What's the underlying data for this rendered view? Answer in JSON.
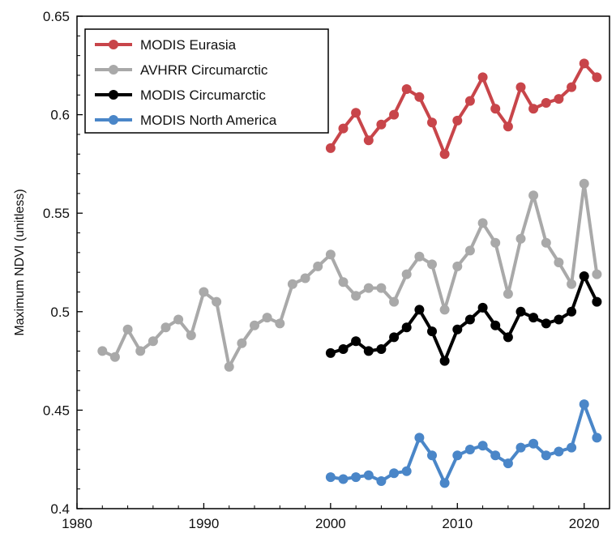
{
  "chart_data": {
    "type": "line",
    "title": "",
    "xlabel": "",
    "ylabel": "Maximum NDVI (unitless)",
    "xlim": [
      1980,
      2022
    ],
    "ylim": [
      0.4,
      0.65
    ],
    "x_ticks": [
      1980,
      1990,
      2000,
      2010,
      2020
    ],
    "y_ticks": [
      0.4,
      0.45,
      0.5,
      0.55,
      0.6,
      0.65
    ],
    "y_tick_labels": [
      "0.4",
      "0.45",
      "0.5",
      "0.55",
      "0.6",
      "0.65"
    ],
    "grid": false,
    "legend_position": "top-left",
    "series": [
      {
        "name": "MODIS Eurasia",
        "color": "#c8454a",
        "x": [
          2000,
          2001,
          2002,
          2003,
          2004,
          2005,
          2006,
          2007,
          2008,
          2009,
          2010,
          2011,
          2012,
          2013,
          2014,
          2015,
          2016,
          2017,
          2018,
          2019,
          2020,
          2021
        ],
        "values": [
          0.583,
          0.593,
          0.601,
          0.587,
          0.595,
          0.6,
          0.613,
          0.609,
          0.596,
          0.58,
          0.597,
          0.607,
          0.619,
          0.603,
          0.594,
          0.614,
          0.603,
          0.606,
          0.608,
          0.614,
          0.626,
          0.619
        ]
      },
      {
        "name": "AVHRR Circumarctic",
        "color": "#a9a9a9",
        "x": [
          1982,
          1983,
          1984,
          1985,
          1986,
          1987,
          1988,
          1989,
          1990,
          1991,
          1992,
          1993,
          1994,
          1995,
          1996,
          1997,
          1998,
          1999,
          2000,
          2001,
          2002,
          2003,
          2004,
          2005,
          2006,
          2007,
          2008,
          2009,
          2010,
          2011,
          2012,
          2013,
          2014,
          2015,
          2016,
          2017,
          2018,
          2019,
          2020,
          2021
        ],
        "values": [
          0.48,
          0.477,
          0.491,
          0.48,
          0.485,
          0.492,
          0.496,
          0.488,
          0.51,
          0.505,
          0.472,
          0.484,
          0.493,
          0.497,
          0.494,
          0.514,
          0.517,
          0.523,
          0.529,
          0.515,
          0.508,
          0.512,
          0.512,
          0.505,
          0.519,
          0.528,
          0.524,
          0.501,
          0.523,
          0.531,
          0.545,
          0.535,
          0.509,
          0.537,
          0.559,
          0.535,
          0.525,
          0.514,
          0.565,
          0.519
        ]
      },
      {
        "name": "MODIS Circumarctic",
        "color": "#000000",
        "x": [
          2000,
          2001,
          2002,
          2003,
          2004,
          2005,
          2006,
          2007,
          2008,
          2009,
          2010,
          2011,
          2012,
          2013,
          2014,
          2015,
          2016,
          2017,
          2018,
          2019,
          2020,
          2021
        ],
        "values": [
          0.479,
          0.481,
          0.485,
          0.48,
          0.481,
          0.487,
          0.492,
          0.501,
          0.49,
          0.475,
          0.491,
          0.496,
          0.502,
          0.493,
          0.487,
          0.5,
          0.497,
          0.494,
          0.496,
          0.5,
          0.518,
          0.505
        ]
      },
      {
        "name": "MODIS North America",
        "color": "#4a86c8",
        "x": [
          2000,
          2001,
          2002,
          2003,
          2004,
          2005,
          2006,
          2007,
          2008,
          2009,
          2010,
          2011,
          2012,
          2013,
          2014,
          2015,
          2016,
          2017,
          2018,
          2019,
          2020,
          2021
        ],
        "values": [
          0.416,
          0.415,
          0.416,
          0.417,
          0.414,
          0.418,
          0.419,
          0.436,
          0.427,
          0.413,
          0.427,
          0.43,
          0.432,
          0.427,
          0.423,
          0.431,
          0.433,
          0.427,
          0.429,
          0.431,
          0.453,
          0.436
        ]
      }
    ]
  }
}
